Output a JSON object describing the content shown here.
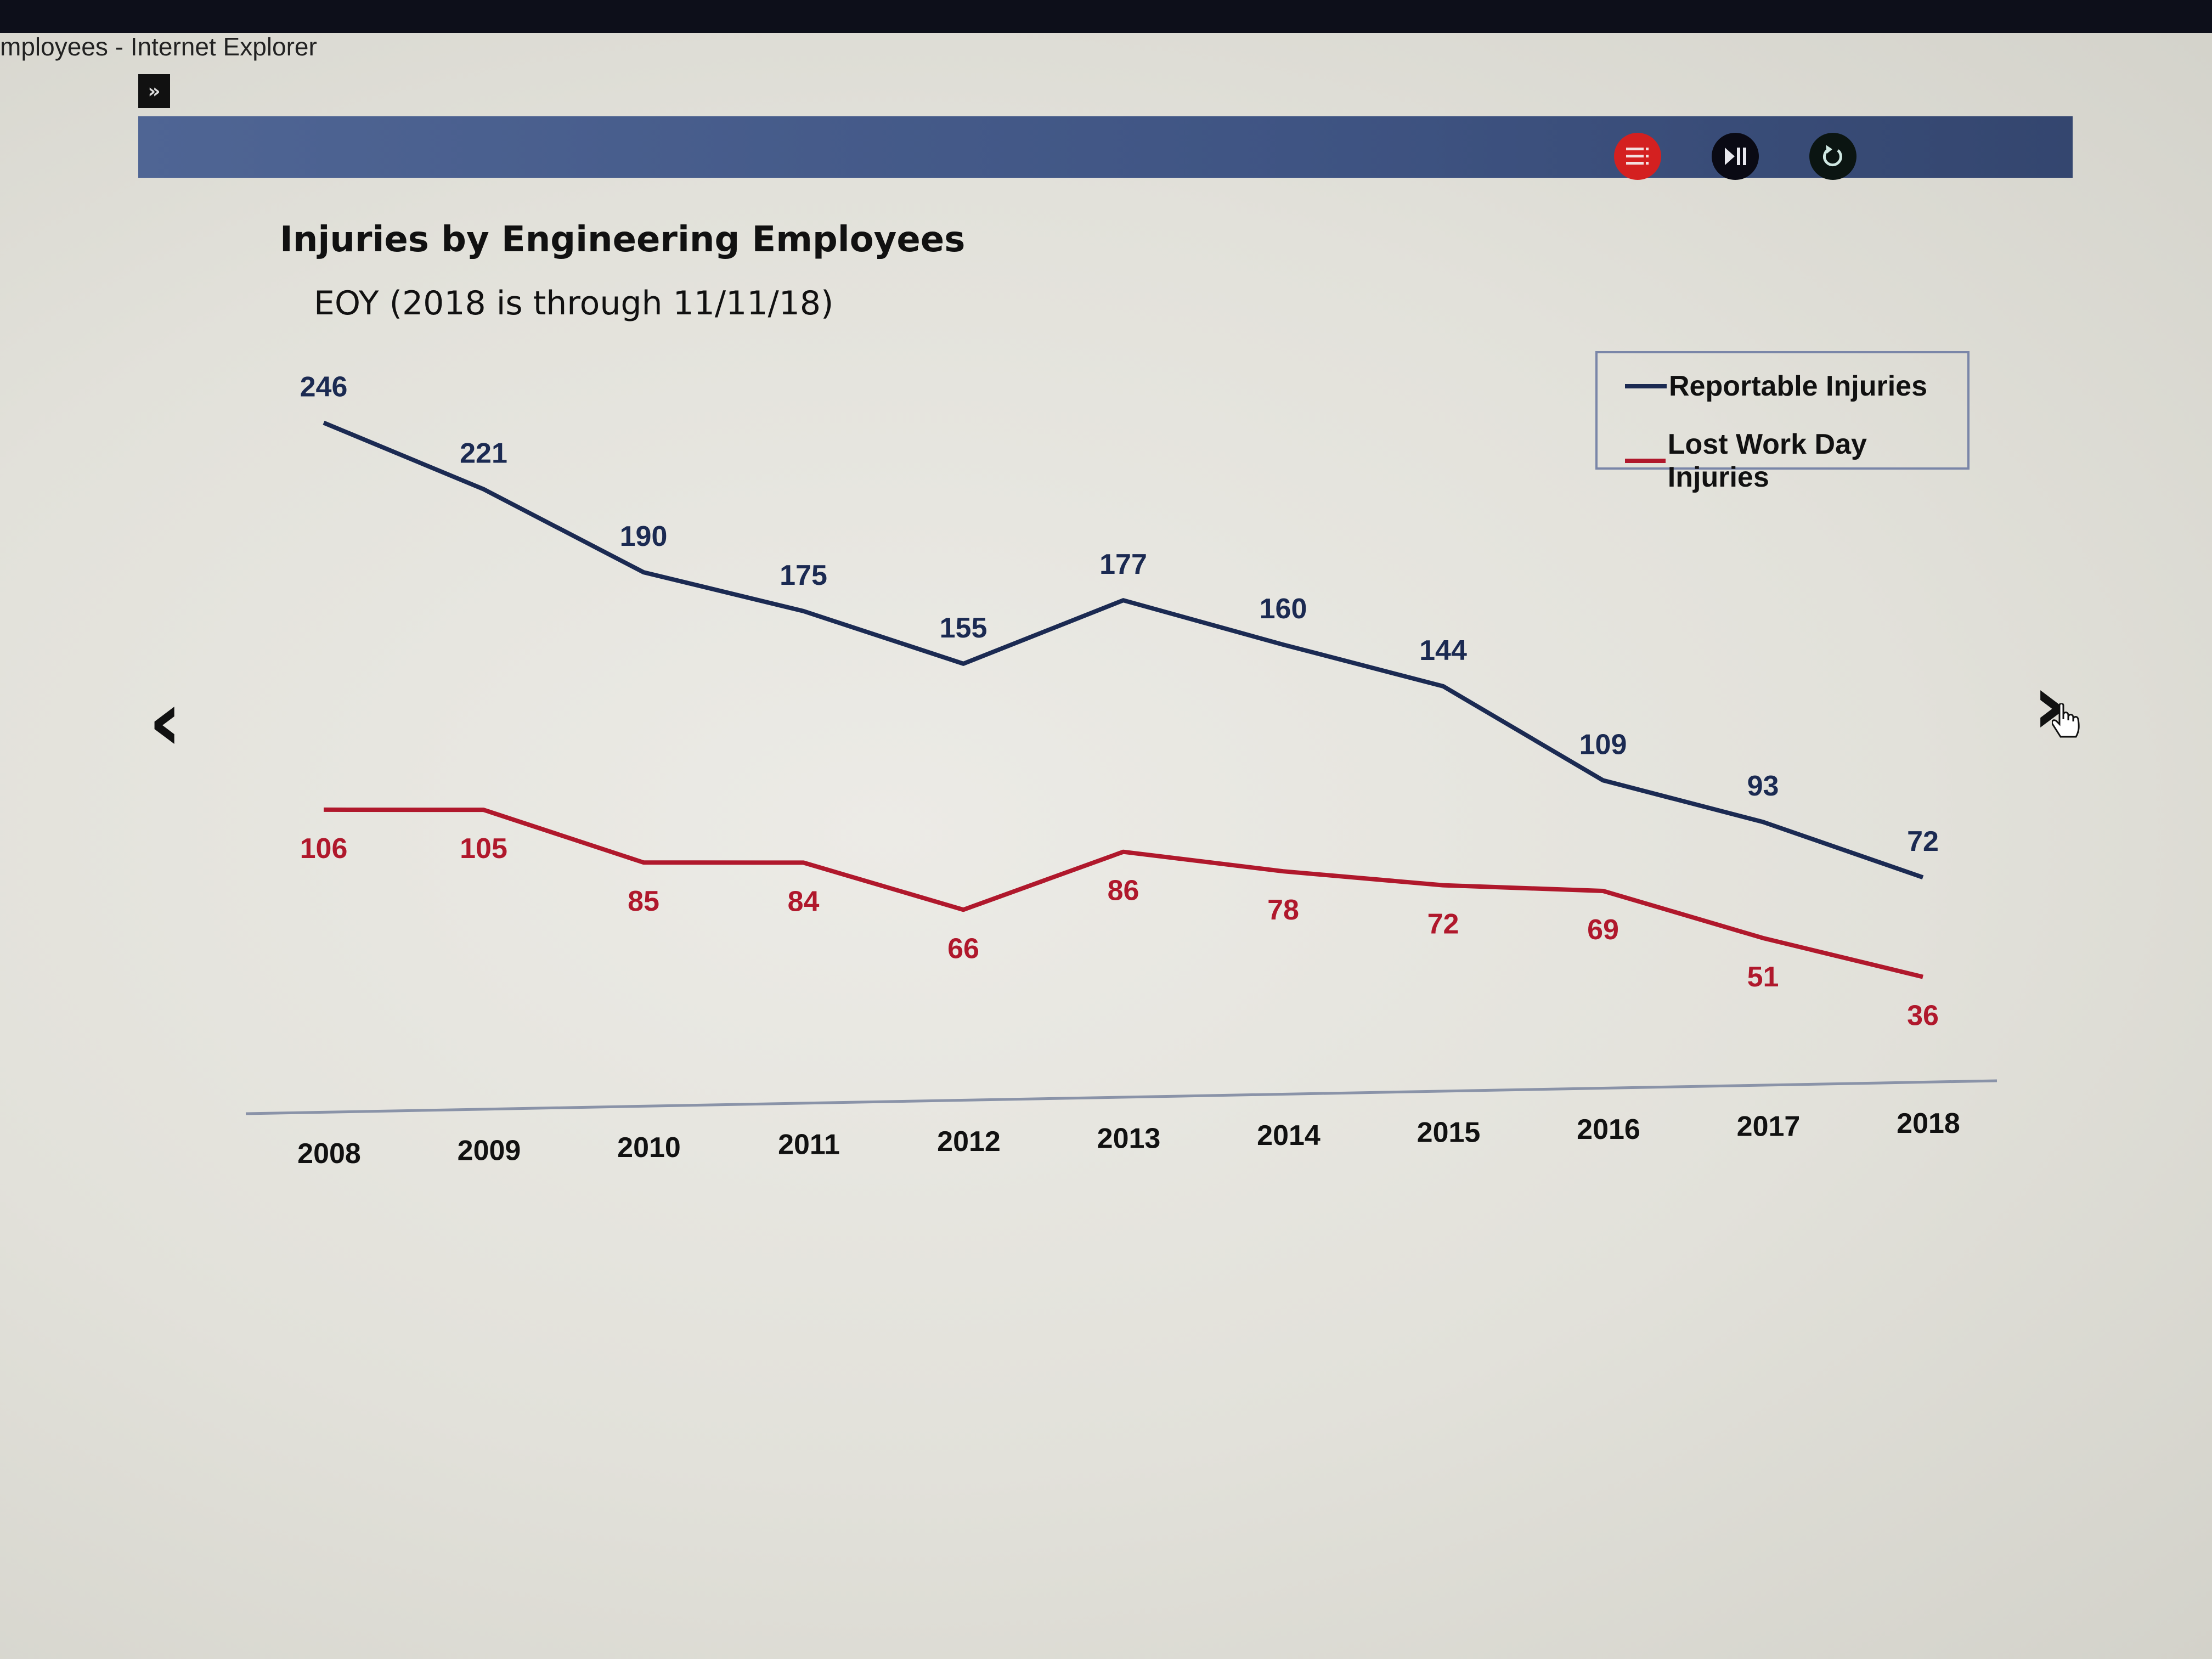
{
  "window": {
    "title": "mployees - Internet Explorer"
  },
  "toolbar": {
    "expand_label": "»",
    "buttons": [
      {
        "name": "menu",
        "icon": "list-menu-icon",
        "color": "#d42020"
      },
      {
        "name": "play-pause",
        "icon": "play-pause-icon",
        "color": "#0a0a14"
      },
      {
        "name": "replay",
        "icon": "replay-icon",
        "color": "#0b1512"
      }
    ]
  },
  "navigation": {
    "prev": "‹",
    "next": "›"
  },
  "chart_data": {
    "type": "line",
    "title": "Injuries by Engineering Employees",
    "subtitle": "EOY (2018 is through 11/11/18)",
    "xlabel": "",
    "ylabel": "",
    "categories": [
      "2008",
      "2009",
      "2010",
      "2011",
      "2012",
      "2013",
      "2014",
      "2015",
      "2016",
      "2017",
      "2018"
    ],
    "ylim": [
      0,
      260
    ],
    "grid": false,
    "legend_position": "top-right",
    "series": [
      {
        "name": "Reportable Injuries",
        "color": "#1b2a52",
        "values": [
          246,
          221,
          190,
          175,
          155,
          177,
          160,
          144,
          109,
          93,
          72
        ]
      },
      {
        "name": "Lost Work Day Injuries",
        "color": "#b0182c",
        "values": [
          106,
          105,
          85,
          84,
          66,
          86,
          78,
          72,
          69,
          51,
          36
        ]
      }
    ]
  }
}
